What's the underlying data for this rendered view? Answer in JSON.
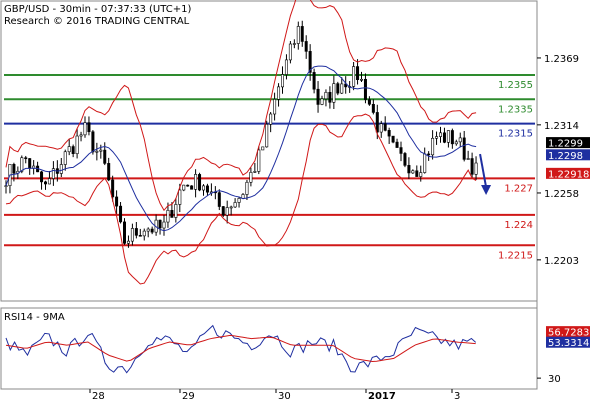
{
  "header": {
    "line1": "GBP/USD - 30min - 07:37:33 (UTC+1)",
    "line2": "Research © 2016 TRADING CENTRAL"
  },
  "chart_data": [
    {
      "type": "candlestick",
      "ylim": [
        1.217,
        1.2415
      ],
      "yticks": [
        {
          "value": 1.2369,
          "label": "1.2369"
        },
        {
          "value": 1.2314,
          "label": "1.2314"
        },
        {
          "value": 1.2258,
          "label": "1.2258"
        },
        {
          "value": 1.2203,
          "label": "1.2203"
        }
      ],
      "xticks": [
        "28",
        "29",
        "30",
        "2017",
        "3"
      ],
      "levels": [
        {
          "value": 1.2355,
          "label": "1.2355",
          "color": "#2e8b2e"
        },
        {
          "value": 1.2335,
          "label": "1.2335",
          "color": "#2e8b2e"
        },
        {
          "value": 1.2315,
          "label": "1.2315",
          "color": "#1f2fa0"
        },
        {
          "value": 1.227,
          "label": "1.227",
          "color": "#d01818"
        },
        {
          "value": 1.224,
          "label": "1.224",
          "color": "#d01818"
        },
        {
          "value": 1.2215,
          "label": "1.2215",
          "color": "#d01818"
        }
      ],
      "price_tags": [
        {
          "value": 1.2299,
          "label": "1.2299",
          "color": "#000000"
        },
        {
          "value": 1.2298,
          "label": "1.2298",
          "color": "#1f2fa0"
        },
        {
          "value": 1.22918,
          "label": "1.22918",
          "color": "#d01818"
        }
      ],
      "close_path": [
        1.2272,
        1.2286,
        1.2262,
        1.2288,
        1.231,
        1.2282,
        1.2218,
        1.223,
        1.2228,
        1.2264,
        1.2268,
        1.2244,
        1.2256,
        1.229,
        1.235,
        1.2395,
        1.2328,
        1.2348,
        1.2356,
        1.2312,
        1.2288,
        1.2278,
        1.2305,
        1.2302,
        1.2276
      ],
      "bands_color": "#d01818",
      "ma_color": "#1f2fa0",
      "forecast_arrow": {
        "from": 1.229,
        "to": 1.2258,
        "color": "#1f2fa0"
      }
    },
    {
      "type": "line",
      "title": "RSI14 - 9MA",
      "ylim": [
        24,
        72
      ],
      "yticks": [
        {
          "value": 30,
          "label": "30"
        }
      ],
      "series": [
        {
          "color": "#1f2fa0",
          "values": [
            52,
            44,
            55,
            46,
            58,
            38,
            36,
            54,
            53,
            44,
            60,
            56,
            50,
            58,
            46,
            52,
            50,
            36,
            40,
            46,
            58,
            54,
            50,
            52
          ]
        },
        {
          "color": "#d01818",
          "values": [
            50,
            48,
            52,
            50,
            52,
            44,
            40,
            48,
            52,
            50,
            54,
            56,
            54,
            55,
            50,
            50,
            50,
            42,
            40,
            42,
            50,
            54,
            52,
            51
          ]
        }
      ],
      "value_tags": [
        {
          "value": 56.7283,
          "label": "56.7283",
          "color": "#d01818"
        },
        {
          "value": 53.3314,
          "label": "53.3314",
          "color": "#1f2fa0"
        }
      ]
    }
  ]
}
